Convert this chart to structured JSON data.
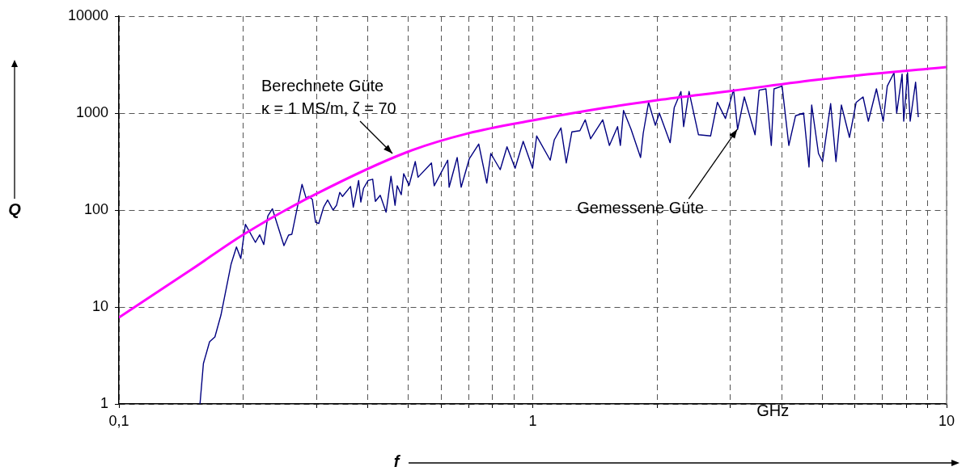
{
  "chart_data": {
    "type": "line",
    "xlabel": "f",
    "ylabel": "Q",
    "log": "xy",
    "grid": true,
    "legend": false,
    "line_style": "solid",
    "marker": "none",
    "xlim": [
      0.1,
      10
    ],
    "ylim": [
      1,
      10000
    ],
    "xticks": [
      {
        "value": 0.1,
        "label": "0,1"
      },
      {
        "value": 0.2,
        "label": null
      },
      {
        "value": 0.3,
        "label": null
      },
      {
        "value": 0.4,
        "label": null
      },
      {
        "value": 0.5,
        "label": null
      },
      {
        "value": 0.6,
        "label": null
      },
      {
        "value": 0.7,
        "label": null
      },
      {
        "value": 0.8,
        "label": null
      },
      {
        "value": 0.9,
        "label": null
      },
      1,
      {
        "value": 2,
        "label": null
      },
      {
        "value": 3,
        "label": null
      },
      {
        "value": 4,
        "label": null
      },
      {
        "value": 5,
        "label": null
      },
      {
        "value": 6,
        "label": null
      },
      {
        "value": 7,
        "label": null
      },
      {
        "value": 8,
        "label": null
      },
      {
        "value": 9,
        "label": null
      },
      10
    ],
    "yticks": [
      1,
      10,
      100,
      1000,
      10000
    ],
    "series": [
      {
        "color": "#ff00ff",
        "x": [
          0.1,
          0.15,
          0.2,
          0.3,
          0.5,
          0.7,
          1,
          1.5,
          2,
          3,
          5,
          10
        ],
        "values": [
          7.8,
          24.5,
          56,
          147,
          400,
          620,
          841,
          1137,
          1360,
          1690,
          2240,
          2985
        ]
      },
      {
        "color": "#000080",
        "x": [
          0.157,
          0.16,
          0.1656,
          0.1706,
          0.1764,
          0.1867,
          0.1923,
          0.197,
          0.2021,
          0.2137,
          0.2189,
          0.2239,
          0.229,
          0.2349,
          0.2505,
          0.257,
          0.2617,
          0.277,
          0.2833,
          0.2877,
          0.2933,
          0.2986,
          0.304,
          0.3123,
          0.3194,
          0.3291,
          0.3356,
          0.3417,
          0.3468,
          0.3628,
          0.3684,
          0.3795,
          0.3842,
          0.3899,
          0.4001,
          0.4104,
          0.4166,
          0.428,
          0.4422,
          0.4544,
          0.4648,
          0.4704,
          0.4811,
          0.4877,
          0.5025,
          0.5201,
          0.5282,
          0.5691,
          0.578,
          0.623,
          0.6279,
          0.6567,
          0.6714,
          0.7023,
          0.7403,
          0.7743,
          0.7919,
          0.8344,
          0.8665,
          0.9065,
          0.9482,
          0.9991,
          1.022,
          1.102,
          1.127,
          1.17,
          1.205,
          1.243,
          1.3,
          1.339,
          1.38,
          1.476,
          1.532,
          1.603,
          1.628,
          1.657,
          1.728,
          1.822,
          1.849,
          1.905,
          1.978,
          2.023,
          2.148,
          2.197,
          2.281,
          2.315,
          2.386,
          2.514,
          2.69,
          2.793,
          2.922,
          3.057,
          3.126,
          3.245,
          3.445,
          3.524,
          3.66,
          3.771,
          3.828,
          4.004,
          4.157,
          4.315,
          4.514,
          4.651,
          4.721,
          4.903,
          5.015,
          5.246,
          5.404,
          5.569,
          5.825,
          6.047,
          6.283,
          6.471,
          6.768,
          7.029,
          7.189,
          7.464,
          7.576,
          7.808,
          7.878,
          8.047,
          8.166,
          8.416,
          8.543
        ],
        "values": [
          1,
          2.61,
          4.38,
          4.92,
          8.25,
          27.8,
          41.6,
          31.6,
          71.2,
          46.4,
          55.5,
          44.1,
          86.9,
          103,
          43,
          55.2,
          56.2,
          184,
          133,
          138,
          129,
          75,
          72.6,
          107,
          127,
          100,
          112,
          152,
          138,
          175,
          107,
          202,
          121,
          167,
          202,
          208,
          123,
          142,
          95,
          223,
          112,
          178,
          144,
          237,
          180,
          316,
          218,
          306,
          178,
          327,
          172,
          348,
          172,
          337,
          480,
          190,
          383,
          261,
          449,
          270,
          511,
          270,
          581,
          327,
          528,
          704,
          306,
          640,
          659,
          853,
          544,
          853,
          464,
          726,
          464,
          1065,
          681,
          348,
          619,
          1291,
          750,
          1000,
          495,
          1137,
          1669,
          726,
          1669,
          599,
          581,
          1291,
          880,
          1754,
          681,
          1468,
          599,
          1722,
          1778,
          464,
          1778,
          1895,
          464,
          939,
          1000,
          278,
          1212,
          383,
          316,
          1252,
          316,
          1212,
          562,
          1291,
          1468,
          825,
          1778,
          825,
          1895,
          2610,
          1000,
          2527,
          825,
          2610,
          825,
          2084,
          908
        ]
      }
    ],
    "annotations": [
      {
        "text": "Berechnete Güte\nκ = 1 MS/m, ζ = 70",
        "x": 0.458,
        "y": 383
      },
      {
        "text": "Gemessene Güte",
        "x": 3.12,
        "y": 681
      },
      "GHz"
    ]
  }
}
